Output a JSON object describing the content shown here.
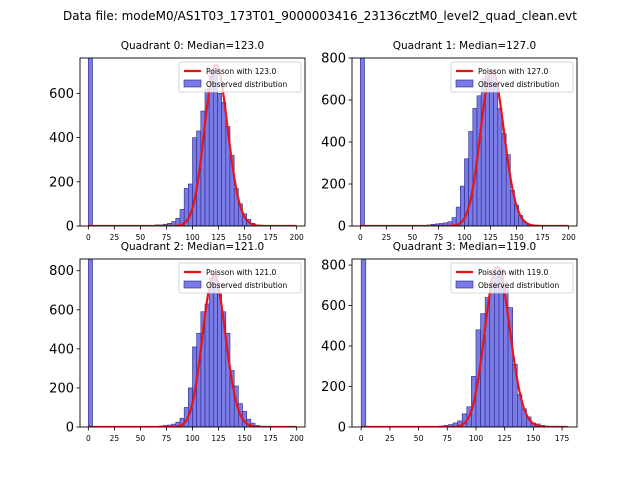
{
  "figure_title": "Data file: modeM0/AS1T03_173T01_9000003416_23136cztM0_level2_quad_clean.evt",
  "colors": {
    "bar_fill": "#7b7be6",
    "bar_edge": "#2a2a8a",
    "poisson_line": "#e8141a",
    "axes": "#000000"
  },
  "legend_observed": "Observed distribution",
  "chart_data": [
    {
      "type": "bar",
      "title": "Quadrant 0: Median=123.0",
      "legend_poisson": "Poisson with 123.0",
      "median": 123.0,
      "xlim": [
        -8,
        208
      ],
      "ylim": [
        0,
        760
      ],
      "xticks": [
        0,
        25,
        50,
        75,
        100,
        125,
        150,
        175,
        200
      ],
      "yticks": [
        0,
        200,
        400,
        600
      ],
      "bin_width": 4,
      "bin_starts": [
        0,
        60,
        64,
        68,
        72,
        76,
        80,
        84,
        88,
        92,
        96,
        100,
        104,
        108,
        112,
        116,
        120,
        124,
        128,
        132,
        136,
        140,
        144,
        148,
        152,
        156,
        160
      ],
      "values": [
        760,
        3,
        5,
        5,
        8,
        12,
        20,
        35,
        75,
        170,
        190,
        400,
        430,
        520,
        620,
        700,
        710,
        600,
        560,
        450,
        320,
        170,
        100,
        55,
        30,
        12,
        5
      ],
      "poisson_scale": 730
    },
    {
      "type": "bar",
      "title": "Quadrant 1: Median=127.0",
      "legend_poisson": "Poisson with 127.0",
      "median": 127.0,
      "xlim": [
        -8,
        208
      ],
      "ylim": [
        0,
        800
      ],
      "xticks": [
        0,
        25,
        50,
        75,
        100,
        125,
        150,
        175,
        200
      ],
      "yticks": [
        0,
        200,
        400,
        600,
        800
      ],
      "bin_width": 4,
      "bin_starts": [
        0,
        64,
        68,
        72,
        76,
        80,
        84,
        88,
        92,
        96,
        100,
        104,
        108,
        112,
        116,
        120,
        124,
        128,
        132,
        136,
        140,
        144,
        148,
        152,
        156,
        160,
        164,
        168
      ],
      "values": [
        800,
        5,
        8,
        10,
        12,
        15,
        20,
        40,
        90,
        190,
        320,
        450,
        560,
        620,
        700,
        720,
        730,
        680,
        560,
        440,
        340,
        170,
        100,
        50,
        20,
        8,
        5,
        3
      ],
      "poisson_scale": 740
    },
    {
      "type": "bar",
      "title": "Quadrant 2: Median=121.0",
      "legend_poisson": "Poisson with 121.0",
      "median": 121.0,
      "xlim": [
        -8,
        208
      ],
      "ylim": [
        0,
        860
      ],
      "xticks": [
        0,
        25,
        50,
        75,
        100,
        125,
        150,
        175,
        200
      ],
      "yticks": [
        0,
        200,
        400,
        600,
        800
      ],
      "bin_width": 4,
      "bin_starts": [
        0,
        68,
        72,
        76,
        80,
        84,
        88,
        92,
        96,
        100,
        104,
        108,
        112,
        116,
        120,
        124,
        128,
        132,
        136,
        140,
        144,
        148,
        152,
        156,
        160,
        164
      ],
      "values": [
        860,
        5,
        8,
        10,
        15,
        25,
        45,
        100,
        200,
        410,
        480,
        590,
        630,
        760,
        780,
        680,
        590,
        480,
        290,
        210,
        120,
        80,
        40,
        20,
        8,
        4
      ],
      "poisson_scale": 775
    },
    {
      "type": "bar",
      "title": "Quadrant 3: Median=119.0",
      "legend_poisson": "Poisson with 119.0",
      "median": 119.0,
      "xlim": [
        -8,
        188
      ],
      "ylim": [
        0,
        830
      ],
      "xticks": [
        0,
        25,
        50,
        75,
        100,
        125,
        150,
        175
      ],
      "yticks": [
        0,
        200,
        400,
        600,
        800
      ],
      "bin_width": 4,
      "bin_starts": [
        0,
        64,
        68,
        72,
        76,
        80,
        84,
        88,
        92,
        96,
        100,
        104,
        108,
        112,
        116,
        120,
        124,
        128,
        132,
        136,
        140,
        144,
        148,
        152,
        156,
        160
      ],
      "values": [
        830,
        3,
        5,
        8,
        12,
        20,
        30,
        65,
        100,
        250,
        480,
        560,
        640,
        720,
        760,
        780,
        690,
        590,
        310,
        160,
        90,
        50,
        20,
        15,
        8,
        3
      ],
      "poisson_scale": 790
    }
  ]
}
